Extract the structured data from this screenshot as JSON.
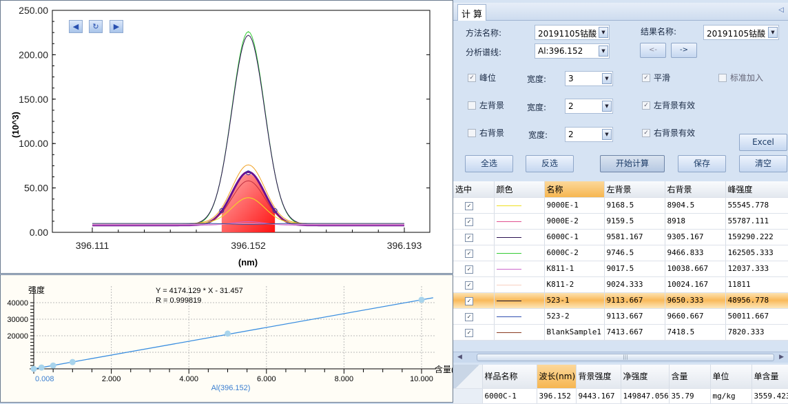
{
  "spectrum": {
    "y_label": "(10^3)",
    "x_label": "(nm)",
    "y_ticks": [
      "250.00",
      "200.00",
      "150.00",
      "100.00",
      "50.00",
      "0.00"
    ],
    "x_ticks": [
      "396.111",
      "396.152",
      "396.193"
    ],
    "nav_icons": [
      "arrow-left-icon",
      "refresh-icon",
      "arrow-right-icon"
    ],
    "chart_data": {
      "type": "line",
      "ylim": [
        0,
        250
      ],
      "xlim": [
        396.111,
        396.193
      ],
      "integration_window": [
        396.145,
        396.159
      ],
      "series": [
        {
          "color": "#33cc33",
          "peak": 226
        },
        {
          "color": "#2a1050",
          "peak": 222
        },
        {
          "color": "#f0a020",
          "peak": 76
        },
        {
          "color": "#6a1090",
          "peak": 68
        },
        {
          "color": "#c03040",
          "peak": 58
        },
        {
          "color": "#f0e020",
          "peak": 39
        },
        {
          "color": "#cc66cc",
          "peak": 12
        },
        {
          "color": "#e8a0e0",
          "peak": 10
        },
        {
          "color": "#3050a0",
          "peak": 9
        }
      ]
    }
  },
  "calibration": {
    "y_label": "强度",
    "x_label": "含量(",
    "equation": "Y = 4174.129 * X - 31.457",
    "r_value": "R = 0.999819",
    "x_caption": "Al(396.152)",
    "origin_label": "0.008",
    "y_ticks": [
      "40000",
      "30000",
      "20000"
    ],
    "x_ticks": [
      "2.000",
      "4.000",
      "6.000",
      "8.000",
      "10.000"
    ],
    "chart_data": {
      "type": "scatter",
      "slope": 4174.129,
      "intercept": -31.457,
      "xlim": [
        0,
        10
      ],
      "ylim": [
        0,
        40000
      ],
      "points": [
        [
          0,
          0
        ],
        [
          0.2,
          800
        ],
        [
          0.5,
          2000
        ],
        [
          1,
          4100
        ],
        [
          5,
          21300
        ],
        [
          10,
          41700
        ]
      ]
    }
  },
  "panel": {
    "tab": "计算",
    "method_label": "方法名称:",
    "method_value": "20191105钴酸",
    "result_label": "结果名称:",
    "result_value": "20191105钴酸",
    "line_label": "分析谱线:",
    "line_value": "Al:396.152",
    "prev": "<-",
    "next": "->",
    "peak": "峰位",
    "peak_checked": true,
    "width_label": "宽度:",
    "peak_width": "3",
    "left_bg": "左背景",
    "left_bg_checked": false,
    "left_width": "2",
    "right_bg": "右背景",
    "right_bg_checked": false,
    "right_width": "2",
    "smooth": "平滑",
    "left_valid": "左背景有效",
    "right_valid": "右背景有效",
    "std_add": "标准加入",
    "buttons": {
      "select_all": "全选",
      "invert": "反选",
      "start": "开始计算",
      "save": "保存",
      "excel": "Excel",
      "clear": "清空"
    }
  },
  "table": {
    "headers": [
      "选中",
      "颜色",
      "名称",
      "左背景",
      "右背景",
      "峰强度"
    ],
    "rows": [
      {
        "color": "#f0e020",
        "name": "9000E-1",
        "left": "9168.5",
        "right": "8904.5",
        "peak": "55545.778"
      },
      {
        "color": "#e05090",
        "name": "9000E-2",
        "left": "9159.5",
        "right": "8918",
        "peak": "55787.111"
      },
      {
        "color": "#2a1050",
        "name": "6000C-1",
        "left": "9581.167",
        "right": "9305.167",
        "peak": "159290.222"
      },
      {
        "color": "#33cc33",
        "name": "6000C-2",
        "left": "9746.5",
        "right": "9466.833",
        "peak": "162505.333"
      },
      {
        "color": "#cc66cc",
        "name": "K811-1",
        "left": "9017.5",
        "right": "10038.667",
        "peak": "12037.333"
      },
      {
        "color": "#f8d0c0",
        "name": "K811-2",
        "left": "9024.333",
        "right": "10024.167",
        "peak": "11811"
      },
      {
        "color": "#101030",
        "name": "523-1",
        "left": "9113.667",
        "right": "9650.333",
        "peak": "48956.778",
        "selected": true
      },
      {
        "color": "#3050b0",
        "name": "523-2",
        "left": "9113.667",
        "right": "9660.667",
        "peak": "50011.667"
      },
      {
        "color": "#8a3a20",
        "name": "BlankSample1",
        "left": "7413.667",
        "right": "7418.5",
        "peak": "7820.333"
      }
    ]
  },
  "results": {
    "headers": [
      "样品名称",
      "波长(nm)",
      "背景强度",
      "净强度",
      "含量",
      "单位",
      "单含量"
    ],
    "row": [
      "6000C-1",
      "396.152",
      "9443.167",
      "149847.056",
      "35.79",
      "mg/kg",
      "3559.423"
    ]
  }
}
